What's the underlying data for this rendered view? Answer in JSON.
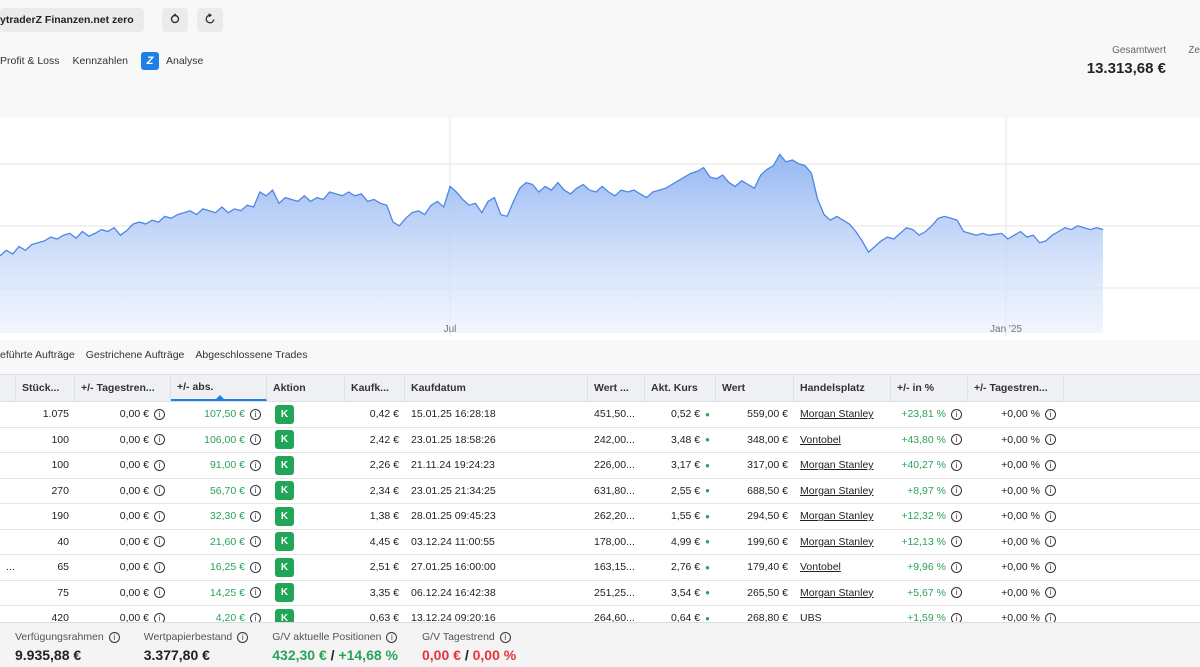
{
  "topbar": {
    "account_label": "ytraderZ Finanzen.net zero",
    "refresh_icon": "refresh-icon",
    "reload_icon": "reload-icon"
  },
  "subtabs": {
    "profit_loss": "Profit & Loss",
    "kennzahlen": "Kennzahlen",
    "analyse": "Analyse"
  },
  "total": {
    "label": "Gesamtwert",
    "value": "13.313,68 €",
    "next_label": "Ze"
  },
  "chart_data": {
    "type": "area",
    "x_tick_labels": [
      "Jul",
      "Jan '25"
    ],
    "grid": true,
    "color": "#7aa8f0",
    "values": [
      82,
      88,
      84,
      92,
      88,
      94,
      96,
      98,
      102,
      100,
      104,
      106,
      101,
      108,
      103,
      106,
      110,
      108,
      112,
      104,
      109,
      116,
      118,
      116,
      120,
      118,
      124,
      122,
      126,
      128,
      130,
      126,
      132,
      130,
      128,
      134,
      128,
      132,
      130,
      136,
      134,
      150,
      146,
      152,
      138,
      144,
      142,
      140,
      146,
      140,
      144,
      142,
      150,
      148,
      146,
      150,
      146,
      148,
      140,
      142,
      138,
      136,
      118,
      114,
      122,
      128,
      130,
      126,
      136,
      140,
      134,
      156,
      150,
      142,
      136,
      138,
      128,
      140,
      144,
      126,
      124,
      140,
      154,
      160,
      158,
      150,
      156,
      152,
      160,
      152,
      148,
      154,
      158,
      152,
      150,
      156,
      150,
      146,
      152,
      150,
      152,
      148,
      144,
      150,
      152,
      154,
      158,
      162,
      166,
      170,
      172,
      176,
      166,
      164,
      168,
      160,
      156,
      162,
      158,
      154,
      168,
      174,
      178,
      190,
      182,
      184,
      180,
      178,
      170,
      142,
      126,
      120,
      124,
      120,
      116,
      108,
      98,
      86,
      92,
      98,
      102,
      100,
      106,
      112,
      110,
      104,
      108,
      114,
      122,
      124,
      122,
      120,
      108,
      106,
      104,
      106,
      104,
      105,
      106,
      100,
      104,
      108,
      102,
      104,
      96,
      98,
      104,
      108,
      112,
      110,
      114,
      112,
      110,
      112,
      110
    ]
  },
  "order_tabs": {
    "executed": "eführte Aufträge",
    "cancelled": "Gestrichene Aufträge",
    "closed": "Abgeschlossene Trades"
  },
  "table": {
    "headers": [
      "Stück...",
      "+/- Tagestren...",
      "+/- abs.",
      "Aktion",
      "Kaufk...",
      "Kaufdatum",
      "Wert ...",
      "Akt. Kurs",
      "Wert",
      "Handelsplatz",
      "+/- in %",
      "+/- Tagestren..."
    ],
    "rows": [
      {
        "name": "",
        "qty": "1.075",
        "day": "0,00 €",
        "abs": "107,50 €",
        "action": "K",
        "buy_price": "0,42 €",
        "buy_date": "15.01.25 16:28:18",
        "buy_value": "451,50...",
        "cur_price": "0,52 €",
        "value": "559,00 €",
        "venue": "Morgan Stanley",
        "pct": "+23,81 %",
        "day_pct": "+0,00 %"
      },
      {
        "name": "",
        "qty": "100",
        "day": "0,00 €",
        "abs": "106,00 €",
        "action": "K",
        "buy_price": "2,42 €",
        "buy_date": "23.01.25 18:58:26",
        "buy_value": "242,00...",
        "cur_price": "3,48 €",
        "value": "348,00 €",
        "venue": "Vontobel",
        "pct": "+43,80 %",
        "day_pct": "+0,00 %"
      },
      {
        "name": "",
        "qty": "100",
        "day": "0,00 €",
        "abs": "91,00 €",
        "action": "K",
        "buy_price": "2,26 €",
        "buy_date": "21.11.24 19:24:23",
        "buy_value": "226,00...",
        "cur_price": "3,17 €",
        "value": "317,00 €",
        "venue": "Morgan Stanley",
        "pct": "+40,27 %",
        "day_pct": "+0,00 %"
      },
      {
        "name": "",
        "qty": "270",
        "day": "0,00 €",
        "abs": "56,70 €",
        "action": "K",
        "buy_price": "2,34 €",
        "buy_date": "23.01.25 21:34:25",
        "buy_value": "631,80...",
        "cur_price": "2,55 €",
        "value": "688,50 €",
        "venue": "Morgan Stanley",
        "pct": "+8,97 %",
        "day_pct": "+0,00 %"
      },
      {
        "name": "",
        "qty": "190",
        "day": "0,00 €",
        "abs": "32,30 €",
        "action": "K",
        "buy_price": "1,38 €",
        "buy_date": "28.01.25 09:45:23",
        "buy_value": "262,20...",
        "cur_price": "1,55 €",
        "value": "294,50 €",
        "venue": "Morgan Stanley",
        "pct": "+12,32 %",
        "day_pct": "+0,00 %"
      },
      {
        "name": "",
        "qty": "40",
        "day": "0,00 €",
        "abs": "21,60 €",
        "action": "K",
        "buy_price": "4,45 €",
        "buy_date": "03.12.24 11:00:55",
        "buy_value": "178,00...",
        "cur_price": "4,99 €",
        "value": "199,60 €",
        "venue": "Morgan Stanley",
        "pct": "+12,13 %",
        "day_pct": "+0,00 %"
      },
      {
        "name": "...",
        "qty": "65",
        "day": "0,00 €",
        "abs": "16,25 €",
        "action": "K",
        "buy_price": "2,51 €",
        "buy_date": "27.01.25 16:00:00",
        "buy_value": "163,15...",
        "cur_price": "2,76 €",
        "value": "179,40 €",
        "venue": "Vontobel",
        "pct": "+9,96 %",
        "day_pct": "+0,00 %"
      },
      {
        "name": "",
        "qty": "75",
        "day": "0,00 €",
        "abs": "14,25 €",
        "action": "K",
        "buy_price": "3,35 €",
        "buy_date": "06.12.24 16:42:38",
        "buy_value": "251,25...",
        "cur_price": "3,54 €",
        "value": "265,50 €",
        "venue": "Morgan Stanley",
        "pct": "+5,67 %",
        "day_pct": "+0,00 %"
      },
      {
        "name": "",
        "qty": "420",
        "day": "0,00 €",
        "abs": "4,20 €",
        "action": "K",
        "buy_price": "0,63 €",
        "buy_date": "13.12.24 09:20:16",
        "buy_value": "264,60...",
        "cur_price": "0,64 €",
        "value": "268,80 €",
        "venue": "UBS",
        "pct": "+1,59 %",
        "day_pct": "+0,00 %"
      }
    ]
  },
  "footer": {
    "available_label": "Verfügungsrahmen",
    "available_value": "9.935,88 €",
    "holdings_label": "Wertpapierbestand",
    "holdings_value": "3.377,80 €",
    "pl_label": "G/V aktuelle Positionen",
    "pl_abs": "432,30 €",
    "pl_sep": " / ",
    "pl_pct": "+14,68 %",
    "day_label": "G/V Tagestrend",
    "day_abs": "0,00 €",
    "day_sep": " / ",
    "day_pct": "0,00 %"
  }
}
